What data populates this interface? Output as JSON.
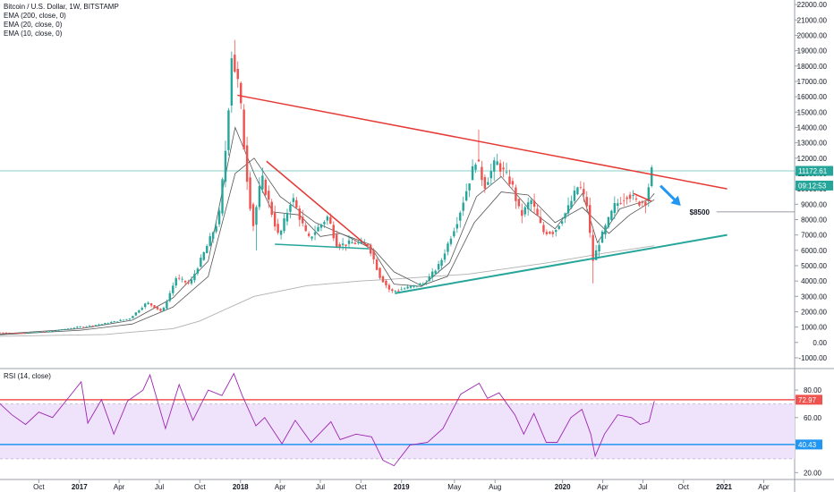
{
  "header": {
    "symbol": "Bitcoin / U.S. Dollar, 1W, BITSTAMP",
    "indicators": [
      "EMA (200, close, 0)",
      "EMA (20, close, 0)",
      "EMA (10, close, 0)"
    ]
  },
  "rsi_panel": {
    "label": "RSI (14, close)"
  },
  "annotations": {
    "target_label": "$8500"
  },
  "colors": {
    "up": "#26a69a",
    "down": "#ef5350",
    "resistance": "#e53935",
    "support": "#26a69a",
    "ema_long": "#b0b0b0",
    "ema_short": "#555555",
    "rsi_line": "#9c27b0",
    "rsi_band": "#efe2fb",
    "arrow": "#2196f3",
    "current_price": "#26a69a"
  },
  "chart_data": [
    {
      "type": "candlestick",
      "title": "Bitcoin / U.S. Dollar, 1W, BITSTAMP",
      "ylim": [
        -1700,
        22300
      ],
      "y_ticks": [
        -1000,
        0,
        1000,
        2000,
        3000,
        4000,
        5000,
        6000,
        7000,
        8000,
        9000,
        10000,
        11000,
        12000,
        13000,
        14000,
        15000,
        16000,
        17000,
        18000,
        19000,
        20000,
        21000,
        22000
      ],
      "y_tick_labels": [
        "-1000.00",
        "0.00",
        "1000.00",
        "2000.00",
        "3000.00",
        "4000.00",
        "5000.00",
        "6000.00",
        "7000.00",
        "8000.00",
        "9000.00",
        "10000.00",
        "11000.00",
        "12000.00",
        "13000.00",
        "14000.00",
        "15000.00",
        "16000.00",
        "17000.00",
        "18000.00",
        "19000.00",
        "20000.00",
        "21000.00",
        "22000.00"
      ],
      "xlim": [
        "2016-07-05",
        "2021-06-10"
      ],
      "x_ticks": [
        {
          "date": "2016-10-01",
          "label": "Oct"
        },
        {
          "date": "2017-01-01",
          "label": "2017"
        },
        {
          "date": "2017-04-01",
          "label": "Apr"
        },
        {
          "date": "2017-07-01",
          "label": "Jul"
        },
        {
          "date": "2017-10-01",
          "label": "Oct"
        },
        {
          "date": "2018-01-01",
          "label": "2018"
        },
        {
          "date": "2018-04-01",
          "label": "Apr"
        },
        {
          "date": "2018-07-01",
          "label": "Jul"
        },
        {
          "date": "2018-10-01",
          "label": "Oct"
        },
        {
          "date": "2019-01-01",
          "label": "2019"
        },
        {
          "date": "2019-05-01",
          "label": "May"
        },
        {
          "date": "2019-08-01",
          "label": "Aug"
        },
        {
          "date": "2020-01-01",
          "label": "2020"
        },
        {
          "date": "2020-04-01",
          "label": "Apr"
        },
        {
          "date": "2020-07-01",
          "label": "Jul"
        },
        {
          "date": "2020-10-01",
          "label": "Oct"
        },
        {
          "date": "2021-01-01",
          "label": "2021"
        },
        {
          "date": "2021-04-01",
          "label": "Apr"
        }
      ],
      "price_path": [
        [
          "2016-07-05",
          650
        ],
        [
          "2016-09-01",
          600
        ],
        [
          "2016-11-01",
          720
        ],
        [
          "2017-01-05",
          1000
        ],
        [
          "2017-03-01",
          1200
        ],
        [
          "2017-05-01",
          1550
        ],
        [
          "2017-06-10",
          2600
        ],
        [
          "2017-07-15",
          2000
        ],
        [
          "2017-08-15",
          4200
        ],
        [
          "2017-09-15",
          3800
        ],
        [
          "2017-10-20",
          6000
        ],
        [
          "2017-11-20",
          8100
        ],
        [
          "2017-12-10",
          14000
        ],
        [
          "2017-12-17",
          19000
        ],
        [
          "2018-01-05",
          16500
        ],
        [
          "2018-01-20",
          11500
        ],
        [
          "2018-02-05",
          7500
        ],
        [
          "2018-02-25",
          10800
        ],
        [
          "2018-04-05",
          6800
        ],
        [
          "2018-05-05",
          9500
        ],
        [
          "2018-06-10",
          6700
        ],
        [
          "2018-07-25",
          8200
        ],
        [
          "2018-08-15",
          6300
        ],
        [
          "2018-09-20",
          6500
        ],
        [
          "2018-10-25",
          6350
        ],
        [
          "2018-11-20",
          4300
        ],
        [
          "2018-12-15",
          3300
        ],
        [
          "2019-01-20",
          3550
        ],
        [
          "2019-03-01",
          3850
        ],
        [
          "2019-04-05",
          5100
        ],
        [
          "2019-05-15",
          8000
        ],
        [
          "2019-06-26",
          12000
        ],
        [
          "2019-07-15",
          10200
        ],
        [
          "2019-08-10",
          11800
        ],
        [
          "2019-09-15",
          10300
        ],
        [
          "2019-10-05",
          8200
        ],
        [
          "2019-10-28",
          9300
        ],
        [
          "2019-11-25",
          7200
        ],
        [
          "2019-12-20",
          7200
        ],
        [
          "2020-01-20",
          8700
        ],
        [
          "2020-02-14",
          10300
        ],
        [
          "2020-03-05",
          8800
        ],
        [
          "2020-03-15",
          5200
        ],
        [
          "2020-04-05",
          6900
        ],
        [
          "2020-05-05",
          8900
        ],
        [
          "2020-06-05",
          9700
        ],
        [
          "2020-06-25",
          9100
        ],
        [
          "2020-07-15",
          9200
        ],
        [
          "2020-07-27",
          11170
        ]
      ],
      "price_spikes": [
        {
          "date": "2017-12-17",
          "high": 19700
        },
        {
          "date": "2018-02-05",
          "low": 6000
        },
        {
          "date": "2019-06-26",
          "high": 13850
        },
        {
          "date": "2020-03-12",
          "low": 3850
        },
        {
          "date": "2020-07-27",
          "high": 12100
        }
      ],
      "series": [
        {
          "name": "EMA (200, close, 0)",
          "style": "ema_long",
          "points": [
            [
              "2016-07-05",
              400
            ],
            [
              "2017-03-01",
              520
            ],
            [
              "2017-08-01",
              900
            ],
            [
              "2017-10-01",
              1400
            ],
            [
              "2017-12-01",
              2200
            ],
            [
              "2018-02-01",
              3000
            ],
            [
              "2018-06-01",
              3700
            ],
            [
              "2018-10-01",
              4000
            ],
            [
              "2018-12-01",
              4100
            ],
            [
              "2019-06-01",
              4450
            ],
            [
              "2019-12-01",
              5200
            ],
            [
              "2020-04-01",
              5800
            ],
            [
              "2020-07-27",
              6300
            ]
          ]
        },
        {
          "name": "EMA (20, close, 0)",
          "style": "ema_short",
          "points": [
            [
              "2016-07-05",
              500
            ],
            [
              "2017-01-05",
              800
            ],
            [
              "2017-05-01",
              1200
            ],
            [
              "2017-08-01",
              2300
            ],
            [
              "2017-10-20",
              4300
            ],
            [
              "2017-12-20",
              11000
            ],
            [
              "2018-02-01",
              12000
            ],
            [
              "2018-04-01",
              9500
            ],
            [
              "2018-06-20",
              7800
            ],
            [
              "2018-09-01",
              6900
            ],
            [
              "2018-11-01",
              6000
            ],
            [
              "2018-12-15",
              4600
            ],
            [
              "2019-02-15",
              3700
            ],
            [
              "2019-04-15",
              4300
            ],
            [
              "2019-06-15",
              7800
            ],
            [
              "2019-08-15",
              9800
            ],
            [
              "2019-10-15",
              9600
            ],
            [
              "2019-12-15",
              7800
            ],
            [
              "2020-02-15",
              8800
            ],
            [
              "2020-04-15",
              7100
            ],
            [
              "2020-06-01",
              8300
            ],
            [
              "2020-07-27",
              9300
            ]
          ]
        },
        {
          "name": "EMA (10, close, 0)",
          "style": "ema_short",
          "points": [
            [
              "2016-07-05",
              550
            ],
            [
              "2017-01-05",
              900
            ],
            [
              "2017-05-01",
              1450
            ],
            [
              "2017-08-01",
              2900
            ],
            [
              "2017-10-20",
              5300
            ],
            [
              "2017-12-20",
              14000
            ],
            [
              "2018-02-01",
              11000
            ],
            [
              "2018-03-15",
              8500
            ],
            [
              "2018-05-15",
              8300
            ],
            [
              "2018-07-01",
              6900
            ],
            [
              "2018-08-15",
              7100
            ],
            [
              "2018-10-20",
              6400
            ],
            [
              "2018-12-15",
              3800
            ],
            [
              "2019-02-15",
              3650
            ],
            [
              "2019-04-20",
              5200
            ],
            [
              "2019-06-20",
              9500
            ],
            [
              "2019-08-15",
              10800
            ],
            [
              "2019-10-20",
              8600
            ],
            [
              "2019-12-15",
              7400
            ],
            [
              "2020-02-15",
              9700
            ],
            [
              "2020-03-20",
              6500
            ],
            [
              "2020-05-10",
              8700
            ],
            [
              "2020-07-15",
              9300
            ],
            [
              "2020-07-27",
              9700
            ]
          ]
        }
      ],
      "trendlines": [
        {
          "role": "resistance",
          "from": [
            "2017-12-25",
            16100
          ],
          "to": [
            "2021-01-08",
            10000
          ]
        },
        {
          "role": "resistance",
          "from": [
            "2018-03-01",
            11800
          ],
          "to": [
            "2018-10-15",
            6300
          ]
        },
        {
          "role": "support",
          "from": [
            "2018-03-20",
            6400
          ],
          "to": [
            "2018-10-20",
            6100
          ]
        },
        {
          "role": "support",
          "from": [
            "2018-12-17",
            3200
          ],
          "to": [
            "2021-01-08",
            7000
          ]
        },
        {
          "role": "resistance",
          "from": [
            "2020-06-10",
            9700
          ],
          "to": [
            "2020-07-20",
            9200
          ]
        }
      ],
      "horizontal_lines": [
        {
          "value": 11172.61,
          "role": "current_price"
        }
      ],
      "price_labels": [
        {
          "value": 11172.61,
          "text": "11172.61",
          "style": "up"
        },
        {
          "value": 10215,
          "text": "09:12:53",
          "style": "up"
        }
      ],
      "arrow": {
        "from": [
          "2020-08-10",
          10200
        ],
        "to": [
          "2020-09-25",
          8900
        ]
      },
      "target": {
        "value": 8500,
        "label": "$8500",
        "label_date": "2020-10-15"
      }
    },
    {
      "type": "line",
      "title": "RSI (14, close)",
      "ylim": [
        15,
        95
      ],
      "y_ticks": [
        20,
        40,
        60,
        80
      ],
      "y_tick_labels": [
        "20.00",
        "40.00",
        "60.00",
        "80.00"
      ],
      "overbought": 72.97,
      "oversold": 40.43,
      "band": [
        30,
        70
      ],
      "price_labels": [
        {
          "value": 72.97,
          "text": "72.97"
        },
        {
          "value": 40.43,
          "text": "40.43"
        }
      ],
      "series": [
        {
          "points": [
            [
              "2016-07-05",
              70
            ],
            [
              "2016-08-01",
              62
            ],
            [
              "2016-09-01",
              55
            ],
            [
              "2016-10-01",
              64
            ],
            [
              "2016-11-01",
              60
            ],
            [
              "2016-12-01",
              72
            ],
            [
              "2017-01-05",
              86
            ],
            [
              "2017-01-20",
              56
            ],
            [
              "2017-02-20",
              73
            ],
            [
              "2017-03-20",
              48
            ],
            [
              "2017-04-20",
              72
            ],
            [
              "2017-05-25",
              80
            ],
            [
              "2017-06-10",
              91
            ],
            [
              "2017-07-15",
              52
            ],
            [
              "2017-08-15",
              84
            ],
            [
              "2017-09-15",
              58
            ],
            [
              "2017-10-20",
              80
            ],
            [
              "2017-11-20",
              76
            ],
            [
              "2017-12-17",
              92
            ],
            [
              "2018-01-05",
              76
            ],
            [
              "2018-02-05",
              54
            ],
            [
              "2018-02-25",
              60
            ],
            [
              "2018-04-05",
              41
            ],
            [
              "2018-05-05",
              58
            ],
            [
              "2018-06-10",
              42
            ],
            [
              "2018-07-25",
              57
            ],
            [
              "2018-08-15",
              44
            ],
            [
              "2018-09-20",
              48
            ],
            [
              "2018-10-25",
              46
            ],
            [
              "2018-11-20",
              29
            ],
            [
              "2018-12-15",
              25
            ],
            [
              "2019-01-20",
              40
            ],
            [
              "2019-03-01",
              42
            ],
            [
              "2019-04-05",
              52
            ],
            [
              "2019-05-15",
              77
            ],
            [
              "2019-06-26",
              85
            ],
            [
              "2019-07-15",
              74
            ],
            [
              "2019-08-10",
              78
            ],
            [
              "2019-09-15",
              62
            ],
            [
              "2019-10-05",
              48
            ],
            [
              "2019-10-28",
              63
            ],
            [
              "2019-11-25",
              42
            ],
            [
              "2019-12-20",
              42
            ],
            [
              "2020-01-20",
              60
            ],
            [
              "2020-02-14",
              66
            ],
            [
              "2020-03-05",
              48
            ],
            [
              "2020-03-15",
              32
            ],
            [
              "2020-04-05",
              48
            ],
            [
              "2020-05-05",
              62
            ],
            [
              "2020-06-05",
              60
            ],
            [
              "2020-06-25",
              55
            ],
            [
              "2020-07-15",
              57
            ],
            [
              "2020-07-27",
              72
            ]
          ]
        }
      ]
    }
  ]
}
